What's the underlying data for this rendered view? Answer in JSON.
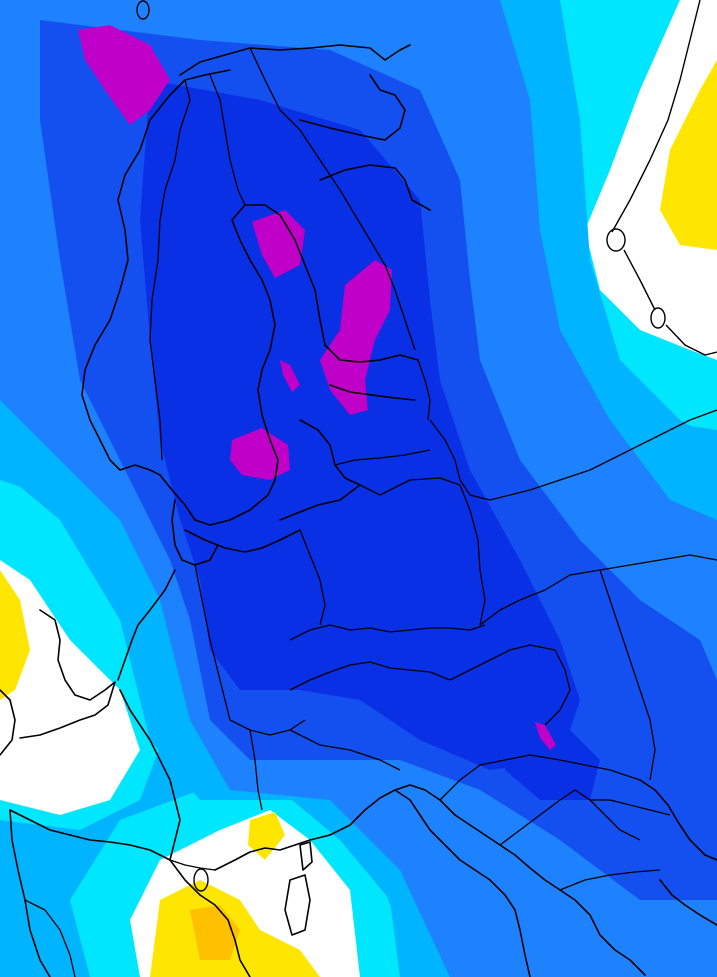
{
  "map": {
    "type": "weather-field-map",
    "region": "Europe",
    "labels": [],
    "colors": {
      "white": "#ffffff",
      "yellow": "#ffe600",
      "gold": "#ffc000",
      "cyan": "#00e6ff",
      "sky": "#00b4ff",
      "light_blue": "#1e82ff",
      "blue": "#1450f0",
      "deep_blue": "#0a30e6",
      "magenta": "#c000c8"
    },
    "color_levels_low_to_high": [
      "white",
      "yellow",
      "gold",
      "cyan",
      "sky",
      "light_blue",
      "blue",
      "deep_blue",
      "magenta"
    ]
  }
}
